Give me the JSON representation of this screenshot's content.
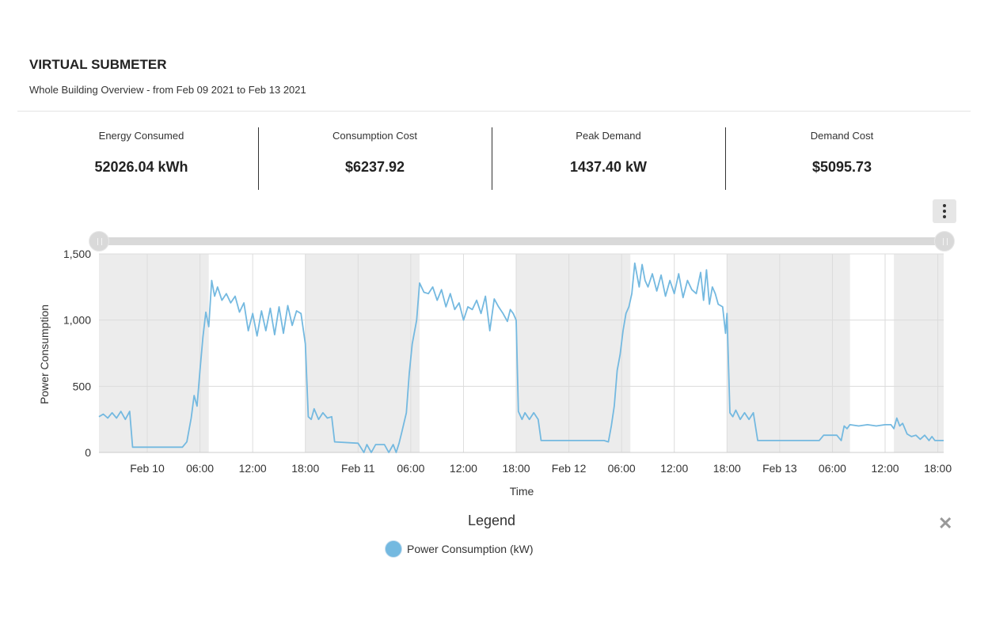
{
  "header": {
    "title": "VIRTUAL SUBMETER",
    "subtitle": "Whole Building Overview - from Feb 09 2021 to Feb 13 2021"
  },
  "kpis": [
    {
      "label": "Energy Consumed",
      "value": "52026.04 kWh"
    },
    {
      "label": "Consumption Cost",
      "value": "$6237.92"
    },
    {
      "label": "Peak Demand",
      "value": "1437.40 kW"
    },
    {
      "label": "Demand Cost",
      "value": "$5095.73"
    }
  ],
  "menu_icon": "more-vertical-icon",
  "legend": {
    "title": "Legend",
    "close_icon": "close-icon",
    "items": [
      {
        "label": "Power Consumption (kW)",
        "color": "#74b9e0"
      }
    ]
  },
  "chart_data": {
    "type": "line",
    "xlabel": "Time",
    "ylabel": "Power Consumption",
    "ylim": [
      0,
      1500
    ],
    "xlim": [
      "2021-02-09 18:30",
      "2021-02-13 18:40"
    ],
    "yticks": [
      "0",
      "500",
      "1,000",
      "1,500"
    ],
    "yticks_values": [
      0,
      500,
      1000,
      1500
    ],
    "xticks": [
      {
        "t": "2021-02-10 00:00",
        "label": "Feb 10"
      },
      {
        "t": "2021-02-10 06:00",
        "label": "06:00"
      },
      {
        "t": "2021-02-10 12:00",
        "label": "12:00"
      },
      {
        "t": "2021-02-10 18:00",
        "label": "18:00"
      },
      {
        "t": "2021-02-11 00:00",
        "label": "Feb 11"
      },
      {
        "t": "2021-02-11 06:00",
        "label": "06:00"
      },
      {
        "t": "2021-02-11 12:00",
        "label": "12:00"
      },
      {
        "t": "2021-02-11 18:00",
        "label": "18:00"
      },
      {
        "t": "2021-02-12 00:00",
        "label": "Feb 12"
      },
      {
        "t": "2021-02-12 06:00",
        "label": "06:00"
      },
      {
        "t": "2021-02-12 12:00",
        "label": "12:00"
      },
      {
        "t": "2021-02-12 18:00",
        "label": "18:00"
      },
      {
        "t": "2021-02-13 00:00",
        "label": "Feb 13"
      },
      {
        "t": "2021-02-13 06:00",
        "label": "06:00"
      },
      {
        "t": "2021-02-13 12:00",
        "label": "12:00"
      },
      {
        "t": "2021-02-13 18:00",
        "label": "18:00"
      }
    ],
    "grid": true,
    "legend_position": "bottom",
    "shaded_ranges": [
      [
        "2021-02-09 18:30",
        "2021-02-10 07:00"
      ],
      [
        "2021-02-10 18:00",
        "2021-02-11 07:00"
      ],
      [
        "2021-02-11 18:00",
        "2021-02-12 07:00"
      ],
      [
        "2021-02-12 18:00",
        "2021-02-13 08:00"
      ],
      [
        "2021-02-13 13:00",
        "2021-02-13 18:40"
      ]
    ],
    "series": [
      {
        "name": "Power Consumption (kW)",
        "color": "#74b9e0",
        "points": [
          [
            "2021-02-09 18:30",
            270
          ],
          [
            "2021-02-09 19:00",
            290
          ],
          [
            "2021-02-09 19:30",
            260
          ],
          [
            "2021-02-09 20:00",
            300
          ],
          [
            "2021-02-09 20:30",
            260
          ],
          [
            "2021-02-09 21:00",
            310
          ],
          [
            "2021-02-09 21:30",
            250
          ],
          [
            "2021-02-09 22:00",
            310
          ],
          [
            "2021-02-09 22:20",
            40
          ],
          [
            "2021-02-10 02:00",
            40
          ],
          [
            "2021-02-10 04:00",
            40
          ],
          [
            "2021-02-10 04:30",
            80
          ],
          [
            "2021-02-10 05:00",
            260
          ],
          [
            "2021-02-10 05:20",
            430
          ],
          [
            "2021-02-10 05:40",
            350
          ],
          [
            "2021-02-10 06:00",
            620
          ],
          [
            "2021-02-10 06:20",
            870
          ],
          [
            "2021-02-10 06:40",
            1060
          ],
          [
            "2021-02-10 07:00",
            950
          ],
          [
            "2021-02-10 07:20",
            1300
          ],
          [
            "2021-02-10 07:40",
            1180
          ],
          [
            "2021-02-10 08:00",
            1250
          ],
          [
            "2021-02-10 08:30",
            1150
          ],
          [
            "2021-02-10 09:00",
            1200
          ],
          [
            "2021-02-10 09:30",
            1130
          ],
          [
            "2021-02-10 10:00",
            1180
          ],
          [
            "2021-02-10 10:30",
            1060
          ],
          [
            "2021-02-10 11:00",
            1130
          ],
          [
            "2021-02-10 11:30",
            920
          ],
          [
            "2021-02-10 12:00",
            1050
          ],
          [
            "2021-02-10 12:30",
            880
          ],
          [
            "2021-02-10 13:00",
            1070
          ],
          [
            "2021-02-10 13:30",
            920
          ],
          [
            "2021-02-10 14:00",
            1090
          ],
          [
            "2021-02-10 14:30",
            890
          ],
          [
            "2021-02-10 15:00",
            1100
          ],
          [
            "2021-02-10 15:30",
            900
          ],
          [
            "2021-02-10 16:00",
            1110
          ],
          [
            "2021-02-10 16:30",
            960
          ],
          [
            "2021-02-10 17:00",
            1070
          ],
          [
            "2021-02-10 17:30",
            1050
          ],
          [
            "2021-02-10 18:00",
            820
          ],
          [
            "2021-02-10 18:20",
            270
          ],
          [
            "2021-02-10 18:40",
            250
          ],
          [
            "2021-02-10 19:00",
            330
          ],
          [
            "2021-02-10 19:30",
            250
          ],
          [
            "2021-02-10 20:00",
            300
          ],
          [
            "2021-02-10 20:30",
            260
          ],
          [
            "2021-02-10 21:00",
            270
          ],
          [
            "2021-02-10 21:20",
            80
          ],
          [
            "2021-02-11 00:00",
            70
          ],
          [
            "2021-02-11 00:40",
            0
          ],
          [
            "2021-02-11 01:00",
            60
          ],
          [
            "2021-02-11 01:30",
            0
          ],
          [
            "2021-02-11 02:00",
            60
          ],
          [
            "2021-02-11 03:00",
            60
          ],
          [
            "2021-02-11 03:30",
            0
          ],
          [
            "2021-02-11 04:00",
            60
          ],
          [
            "2021-02-11 04:20",
            0
          ],
          [
            "2021-02-11 04:40",
            70
          ],
          [
            "2021-02-11 05:00",
            160
          ],
          [
            "2021-02-11 05:30",
            300
          ],
          [
            "2021-02-11 05:50",
            600
          ],
          [
            "2021-02-11 06:10",
            820
          ],
          [
            "2021-02-11 06:40",
            1000
          ],
          [
            "2021-02-11 07:00",
            1280
          ],
          [
            "2021-02-11 07:30",
            1210
          ],
          [
            "2021-02-11 08:00",
            1200
          ],
          [
            "2021-02-11 08:30",
            1250
          ],
          [
            "2021-02-11 09:00",
            1150
          ],
          [
            "2021-02-11 09:30",
            1230
          ],
          [
            "2021-02-11 10:00",
            1100
          ],
          [
            "2021-02-11 10:30",
            1200
          ],
          [
            "2021-02-11 11:00",
            1080
          ],
          [
            "2021-02-11 11:30",
            1130
          ],
          [
            "2021-02-11 12:00",
            1000
          ],
          [
            "2021-02-11 12:30",
            1100
          ],
          [
            "2021-02-11 13:00",
            1080
          ],
          [
            "2021-02-11 13:30",
            1150
          ],
          [
            "2021-02-11 14:00",
            1050
          ],
          [
            "2021-02-11 14:30",
            1180
          ],
          [
            "2021-02-11 15:00",
            920
          ],
          [
            "2021-02-11 15:30",
            1160
          ],
          [
            "2021-02-11 16:00",
            1100
          ],
          [
            "2021-02-11 16:30",
            1050
          ],
          [
            "2021-02-11 17:00",
            990
          ],
          [
            "2021-02-11 17:20",
            1080
          ],
          [
            "2021-02-11 17:40",
            1050
          ],
          [
            "2021-02-11 18:00",
            1000
          ],
          [
            "2021-02-11 18:15",
            310
          ],
          [
            "2021-02-11 18:40",
            250
          ],
          [
            "2021-02-11 19:00",
            300
          ],
          [
            "2021-02-11 19:30",
            250
          ],
          [
            "2021-02-11 20:00",
            300
          ],
          [
            "2021-02-11 20:30",
            250
          ],
          [
            "2021-02-11 20:50",
            90
          ],
          [
            "2021-02-12 02:00",
            90
          ],
          [
            "2021-02-12 04:00",
            90
          ],
          [
            "2021-02-12 04:30",
            80
          ],
          [
            "2021-02-12 04:50",
            200
          ],
          [
            "2021-02-12 05:10",
            350
          ],
          [
            "2021-02-12 05:30",
            620
          ],
          [
            "2021-02-12 05:50",
            740
          ],
          [
            "2021-02-12 06:10",
            920
          ],
          [
            "2021-02-12 06:30",
            1050
          ],
          [
            "2021-02-12 06:50",
            1100
          ],
          [
            "2021-02-12 07:10",
            1200
          ],
          [
            "2021-02-12 07:30",
            1430
          ],
          [
            "2021-02-12 08:00",
            1250
          ],
          [
            "2021-02-12 08:20",
            1420
          ],
          [
            "2021-02-12 08:40",
            1300
          ],
          [
            "2021-02-12 09:00",
            1250
          ],
          [
            "2021-02-12 09:30",
            1350
          ],
          [
            "2021-02-12 10:00",
            1220
          ],
          [
            "2021-02-12 10:30",
            1340
          ],
          [
            "2021-02-12 11:00",
            1180
          ],
          [
            "2021-02-12 11:30",
            1300
          ],
          [
            "2021-02-12 12:00",
            1200
          ],
          [
            "2021-02-12 12:30",
            1350
          ],
          [
            "2021-02-12 13:00",
            1170
          ],
          [
            "2021-02-12 13:30",
            1300
          ],
          [
            "2021-02-12 14:00",
            1230
          ],
          [
            "2021-02-12 14:30",
            1200
          ],
          [
            "2021-02-12 15:00",
            1360
          ],
          [
            "2021-02-12 15:20",
            1150
          ],
          [
            "2021-02-12 15:40",
            1380
          ],
          [
            "2021-02-12 16:00",
            1120
          ],
          [
            "2021-02-12 16:20",
            1250
          ],
          [
            "2021-02-12 16:40",
            1200
          ],
          [
            "2021-02-12 17:00",
            1120
          ],
          [
            "2021-02-12 17:30",
            1100
          ],
          [
            "2021-02-12 17:50",
            900
          ],
          [
            "2021-02-12 18:00",
            1050
          ],
          [
            "2021-02-12 18:20",
            300
          ],
          [
            "2021-02-12 18:40",
            270
          ],
          [
            "2021-02-12 19:00",
            320
          ],
          [
            "2021-02-12 19:30",
            250
          ],
          [
            "2021-02-12 20:00",
            300
          ],
          [
            "2021-02-12 20:30",
            250
          ],
          [
            "2021-02-12 21:00",
            300
          ],
          [
            "2021-02-12 21:30",
            90
          ],
          [
            "2021-02-13 02:00",
            90
          ],
          [
            "2021-02-13 04:30",
            90
          ],
          [
            "2021-02-13 05:00",
            130
          ],
          [
            "2021-02-13 06:30",
            130
          ],
          [
            "2021-02-13 07:00",
            90
          ],
          [
            "2021-02-13 07:20",
            200
          ],
          [
            "2021-02-13 07:40",
            180
          ],
          [
            "2021-02-13 08:00",
            210
          ],
          [
            "2021-02-13 09:00",
            200
          ],
          [
            "2021-02-13 10:00",
            210
          ],
          [
            "2021-02-13 11:00",
            200
          ],
          [
            "2021-02-13 12:00",
            210
          ],
          [
            "2021-02-13 12:40",
            210
          ],
          [
            "2021-02-13 13:00",
            180
          ],
          [
            "2021-02-13 13:20",
            260
          ],
          [
            "2021-02-13 13:40",
            200
          ],
          [
            "2021-02-13 14:00",
            220
          ],
          [
            "2021-02-13 14:30",
            140
          ],
          [
            "2021-02-13 15:00",
            120
          ],
          [
            "2021-02-13 15:30",
            130
          ],
          [
            "2021-02-13 16:00",
            100
          ],
          [
            "2021-02-13 16:30",
            130
          ],
          [
            "2021-02-13 17:00",
            90
          ],
          [
            "2021-02-13 17:20",
            120
          ],
          [
            "2021-02-13 17:40",
            90
          ],
          [
            "2021-02-13 18:40",
            90
          ]
        ]
      }
    ]
  }
}
